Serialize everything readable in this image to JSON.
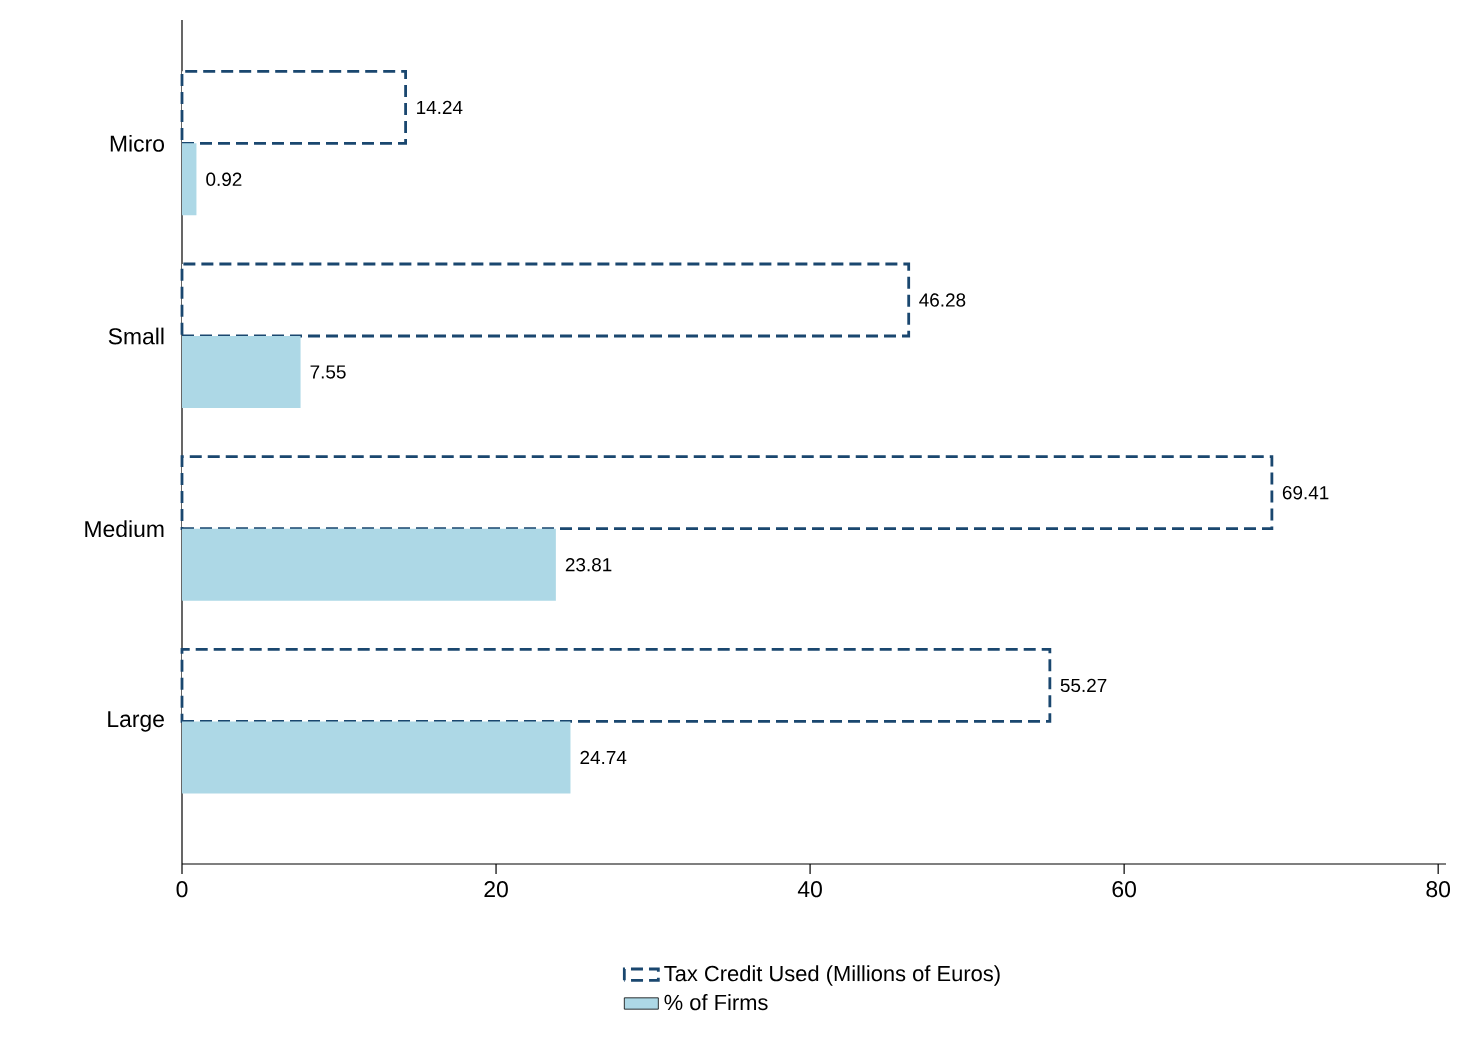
{
  "chart_data": {
    "type": "bar",
    "orientation": "horizontal",
    "categories": [
      "Micro",
      "Small",
      "Medium",
      "Large"
    ],
    "series": [
      {
        "name": "Tax Credit Used (Millions of Euros)",
        "color": "#1a476f",
        "line_style": "dashed",
        "values": [
          14.24,
          46.28,
          69.41,
          55.27
        ]
      },
      {
        "name": "% of Firms",
        "color": "#add8e6",
        "line_style": "solid",
        "values": [
          0.92,
          7.55,
          23.81,
          24.74
        ]
      }
    ],
    "xlim": [
      0,
      80.5
    ],
    "xticks": [
      0,
      20,
      40,
      60,
      80
    ],
    "data_labels": true,
    "legend": "bottom",
    "grid": false
  }
}
